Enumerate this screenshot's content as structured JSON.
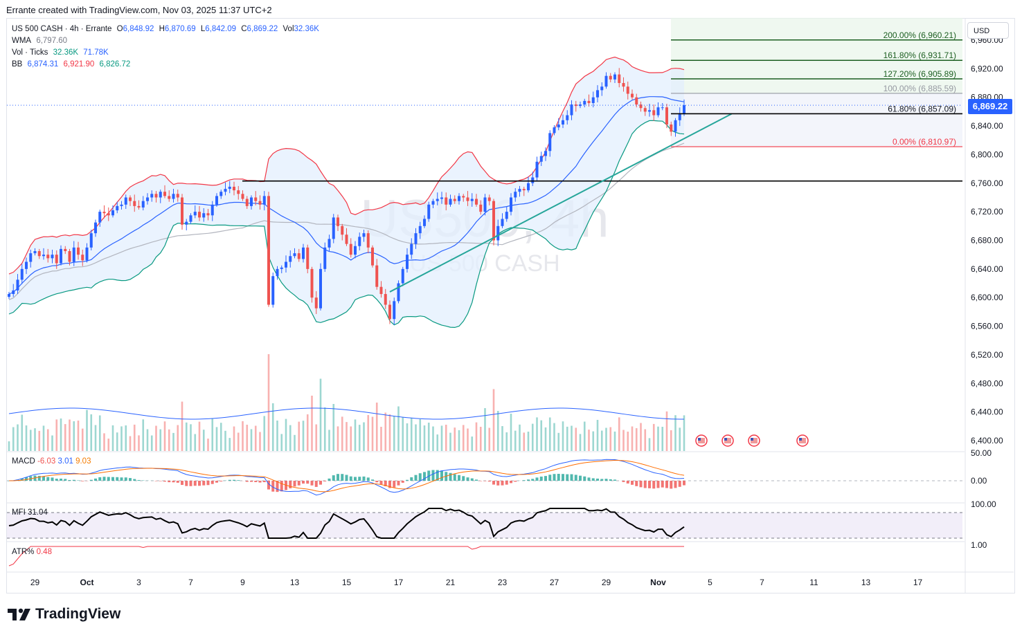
{
  "header": {
    "attribution": "Errante created with TradingView.com, Nov 03, 2025 11:37 UTC+2"
  },
  "legend": {
    "symbol": "US 500 CASH · 4h · Errante",
    "o_label": "O",
    "o": "6,848.92",
    "h_label": "H",
    "h": "6,870.69",
    "l_label": "L",
    "l": "6,842.09",
    "c_label": "C",
    "c": "6,869.22",
    "vol_label": "Vol",
    "vol": "32.36K",
    "wma_label": "WMA",
    "wma": "6,797.60",
    "ticks_label": "Vol · Ticks",
    "ticks_1": "32.36K",
    "ticks_2": "71.78K",
    "bb_label": "BB",
    "bb_basis": "6,874.31",
    "bb_upper": "6,921.90",
    "bb_lower": "6,826.72"
  },
  "currency": "USD",
  "last_price": "6,869.22",
  "watermark": {
    "symbol": "US500, 4h",
    "name": "US 500 CASH"
  },
  "panes": {
    "macd": {
      "label": "MACD",
      "v1": "-6.03",
      "v2": "3.01",
      "v3": "9.03",
      "ticks": [
        "50.00",
        "0.00"
      ]
    },
    "mfi": {
      "label": "MFI",
      "value": "31.04",
      "ticks": [
        "100.00"
      ]
    },
    "atr": {
      "label": "ATR%",
      "value": "0.48",
      "ticks": [
        "1.00"
      ]
    }
  },
  "brand": {
    "name": "TradingView"
  },
  "colors": {
    "up": "#2962ff",
    "down": "#ef5350",
    "bb_upper": "#f23645",
    "bb_basis": "#2962ff",
    "bb_lower": "#089981",
    "bb_fill": "#e3effd",
    "wma": "#b2b5be",
    "trend": "#26a69a",
    "fib_green": "#1b5e20",
    "fib_zone": "#e8f5e9"
  },
  "chart_data": {
    "type": "candlestick",
    "title": "US 500 CASH · 4h · Errante",
    "ylim": [
      6380,
      6990
    ],
    "y_ticks": [
      6400,
      6440,
      6480,
      6520,
      6560,
      6600,
      6640,
      6680,
      6720,
      6760,
      6800,
      6840,
      6880,
      6920,
      6960
    ],
    "y_tick_labels": [
      "6,400.00",
      "6,440.00",
      "6,480.00",
      "6,520.00",
      "6,560.00",
      "6,600.00",
      "6,640.00",
      "6,680.00",
      "6,720.00",
      "6,760.00",
      "6,800.00",
      "6,840.00",
      "6,880.00",
      "6,920.00",
      "6,960.00"
    ],
    "x_ticks": [
      {
        "label": "29",
        "i": 6
      },
      {
        "label": "Oct",
        "i": 18
      },
      {
        "label": "3",
        "i": 30
      },
      {
        "label": "7",
        "i": 42
      },
      {
        "label": "9",
        "i": 54
      },
      {
        "label": "13",
        "i": 66
      },
      {
        "label": "15",
        "i": 78
      },
      {
        "label": "17",
        "i": 90
      },
      {
        "label": "21",
        "i": 102
      },
      {
        "label": "23",
        "i": 114
      },
      {
        "label": "27",
        "i": 126
      },
      {
        "label": "29",
        "i": 138
      },
      {
        "label": "Nov",
        "i": 150
      },
      {
        "label": "5",
        "i": 162
      },
      {
        "label": "7",
        "i": 174
      },
      {
        "label": "11",
        "i": 186
      },
      {
        "label": "13",
        "i": 198
      },
      {
        "label": "17",
        "i": 210
      }
    ],
    "closes": [
      6605,
      6610,
      6625,
      6640,
      6650,
      6662,
      6665,
      6658,
      6660,
      6655,
      6660,
      6648,
      6668,
      6665,
      6650,
      6670,
      6660,
      6652,
      6670,
      6690,
      6705,
      6720,
      6718,
      6715,
      6722,
      6728,
      6730,
      6740,
      6735,
      6728,
      6726,
      6735,
      6740,
      6745,
      6740,
      6748,
      6742,
      6738,
      6745,
      6740,
      6702,
      6706,
      6715,
      6720,
      6712,
      6718,
      6715,
      6730,
      6742,
      6748,
      6752,
      6755,
      6750,
      6745,
      6738,
      6728,
      6740,
      6735,
      6730,
      6742,
      6590,
      6630,
      6640,
      6642,
      6650,
      6658,
      6662,
      6654,
      6670,
      6640,
      6600,
      6585,
      6640,
      6670,
      6682,
      6712,
      6700,
      6688,
      6675,
      6660,
      6672,
      6685,
      6690,
      6670,
      6645,
      6615,
      6605,
      6590,
      6570,
      6595,
      6620,
      6640,
      6660,
      6675,
      6690,
      6700,
      6710,
      6730,
      6735,
      6738,
      6740,
      6730,
      6738,
      6735,
      6742,
      6740,
      6735,
      6738,
      6730,
      6720,
      6740,
      6735,
      6680,
      6700,
      6710,
      6720,
      6740,
      6748,
      6752,
      6750,
      6760,
      6768,
      6790,
      6798,
      6805,
      6830,
      6838,
      6842,
      6848,
      6855,
      6870,
      6868,
      6870,
      6875,
      6872,
      6880,
      6890,
      6895,
      6910,
      6905,
      6912,
      6900,
      6895,
      6885,
      6880,
      6870,
      6865,
      6860,
      6862,
      6855,
      6866,
      6866,
      6842,
      6832,
      6848,
      6857,
      6869
    ],
    "fibonacci": {
      "levels": [
        {
          "label": "200.00% (6,960.21)",
          "value": 6960.21
        },
        {
          "label": "161.80% (6,931.71)",
          "value": 6931.71
        },
        {
          "label": "127.20% (6,905.89)",
          "value": 6905.89
        },
        {
          "label": "100.00% (6,885.59)",
          "value": 6885.59
        },
        {
          "label": "61.80% (6,857.09)",
          "value": 6857.09
        },
        {
          "label": "0.00% (6,810.97)",
          "value": 6810.97
        }
      ]
    },
    "support_level": 6763,
    "trendline": {
      "from": [
        88,
        6608
      ],
      "to": [
        167,
        6857
      ]
    }
  }
}
